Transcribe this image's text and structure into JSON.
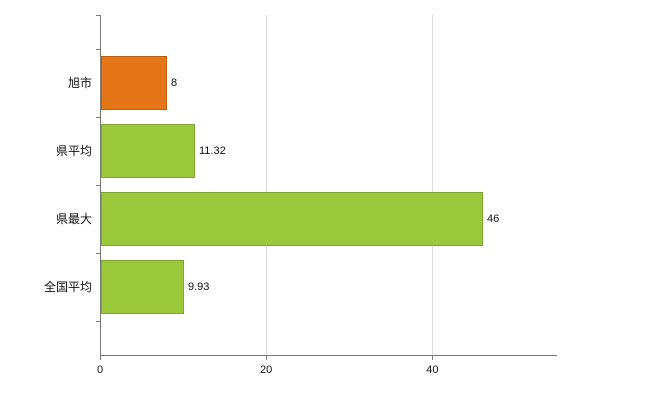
{
  "chart_data": {
    "type": "bar",
    "orientation": "horizontal",
    "title": "",
    "xlabel": "",
    "ylabel": "",
    "categories": [
      "旭市",
      "県平均",
      "県最大",
      "全国平均"
    ],
    "values": [
      8,
      11.32,
      46,
      9.93
    ],
    "value_labels": [
      "8",
      "11.32",
      "46",
      "9.93"
    ],
    "x_ticks": [
      0,
      20,
      40
    ],
    "x_tick_labels": [
      "0",
      "20",
      "40"
    ],
    "xlim": [
      0,
      55
    ],
    "grid": "vertical-only",
    "legend": "none",
    "colors": {
      "bar_default": "#9cc93c",
      "bar_highlight": "#e57617",
      "axis": "#7a7a7a",
      "gridline": "#dcdcdc",
      "text": "#111111"
    },
    "bar_colors": [
      "#e57617",
      "#9cc93c",
      "#9cc93c",
      "#9cc93c"
    ]
  }
}
